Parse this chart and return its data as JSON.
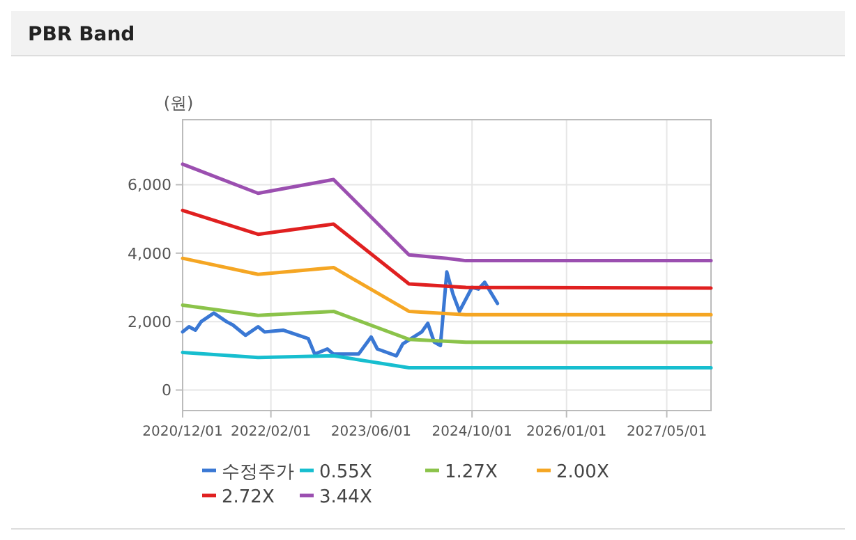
{
  "chart_data": {
    "type": "line",
    "title": "PBR Band",
    "ylabel": "(원)",
    "xlim": [
      "2020-12-01",
      "2027-12-01"
    ],
    "ylim": [
      -600,
      7900
    ],
    "xticks": [
      {
        "value": "2020-12-01",
        "label": "2020/12/01"
      },
      {
        "value": "2022-02-01",
        "label": "2022/02/01"
      },
      {
        "value": "2023-06-01",
        "label": "2023/06/01"
      },
      {
        "value": "2024-10-01",
        "label": "2024/10/01"
      },
      {
        "value": "2026-01-01",
        "label": "2026/01/01"
      },
      {
        "value": "2027-05-01",
        "label": "2027/05/01"
      }
    ],
    "yticks": [
      {
        "value": 0,
        "label": "0"
      },
      {
        "value": 2000,
        "label": "2,000"
      },
      {
        "value": 4000,
        "label": "4,000"
      },
      {
        "value": 6000,
        "label": "6,000"
      }
    ],
    "grid": true,
    "legend": "bottom",
    "marker": "none",
    "line_style": "solid",
    "series": [
      {
        "name": "수정주가",
        "color": "#3a78d4",
        "x": [
          "2020-12",
          "2021-01",
          "2021-02",
          "2021-03",
          "2021-05",
          "2021-07",
          "2021-08",
          "2021-10",
          "2021-12",
          "2022-01",
          "2022-04",
          "2022-08",
          "2022-09",
          "2022-11",
          "2022-12",
          "2023-04",
          "2023-06",
          "2023-07",
          "2023-10",
          "2023-11",
          "2024-02",
          "2024-03",
          "2024-04",
          "2024-05",
          "2024-06",
          "2024-07",
          "2024-08",
          "2024-10",
          "2024-11",
          "2024-12",
          "2025-02"
        ],
        "values": [
          1700,
          1850,
          1750,
          2000,
          2250,
          2000,
          1900,
          1600,
          1850,
          1700,
          1750,
          1500,
          1050,
          1200,
          1050,
          1050,
          1550,
          1200,
          1000,
          1350,
          1700,
          1950,
          1400,
          1300,
          3450,
          2800,
          2300,
          3000,
          2950,
          3150,
          2530
        ]
      },
      {
        "name": "0.55X",
        "color": "#17becf",
        "x": [
          "2020-12",
          "2021-12",
          "2022-12",
          "2023-12",
          "2027-12"
        ],
        "values": [
          1100,
          950,
          1000,
          650,
          650
        ]
      },
      {
        "name": "1.27X",
        "color": "#8bc34a",
        "x": [
          "2020-12",
          "2021-12",
          "2022-12",
          "2023-12",
          "2024-09",
          "2027-12"
        ],
        "values": [
          2480,
          2180,
          2300,
          1480,
          1400,
          1400
        ]
      },
      {
        "name": "2.00X",
        "color": "#f5a623",
        "x": [
          "2020-12",
          "2021-12",
          "2022-12",
          "2023-12",
          "2024-09",
          "2027-12"
        ],
        "values": [
          3850,
          3380,
          3580,
          2300,
          2200,
          2200
        ]
      },
      {
        "name": "2.72X",
        "color": "#e02020",
        "x": [
          "2020-12",
          "2021-12",
          "2022-12",
          "2023-12",
          "2024-09",
          "2027-12"
        ],
        "values": [
          5250,
          4550,
          4850,
          3100,
          3000,
          2980
        ]
      },
      {
        "name": "3.44X",
        "color": "#9b4fb0",
        "x": [
          "2020-12",
          "2021-12",
          "2022-12",
          "2023-12",
          "2024-06",
          "2024-09",
          "2027-12"
        ],
        "values": [
          6600,
          5750,
          6150,
          3950,
          3850,
          3780,
          3780
        ]
      }
    ]
  }
}
